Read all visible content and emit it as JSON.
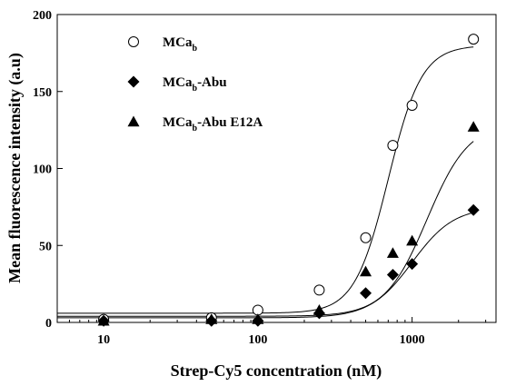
{
  "chart_data": {
    "type": "scatter",
    "xlabel": "Strep-Cy5 concentration (nM)",
    "ylabel": "Mean fluorescence intensity (a.u)",
    "xscale": "log",
    "xlim": [
      5,
      3500
    ],
    "ylim": [
      0,
      200
    ],
    "x_ticks": [
      10,
      100,
      1000
    ],
    "y_ticks": [
      0,
      50,
      100,
      150,
      200
    ],
    "x_tick_labels": [
      "10",
      "100",
      "1000"
    ],
    "y_tick_labels": [
      "0",
      "50",
      "100",
      "150",
      "200"
    ],
    "grid": false,
    "legend_position": "top-left",
    "series": [
      {
        "name": "MCa",
        "name_sub": "b",
        "name_suffix": "",
        "marker": "open-circle",
        "x": [
          10,
          50,
          100,
          250,
          500,
          750,
          1000,
          2500
        ],
        "y": [
          2,
          3,
          8,
          21,
          55,
          115,
          141,
          184
        ],
        "fit": {
          "bottom": 6,
          "top": 180,
          "ec50": 700,
          "hill": 4.0
        }
      },
      {
        "name": "MCa",
        "name_sub": "b",
        "name_suffix": "-Abu",
        "marker": "filled-diamond",
        "x": [
          10,
          50,
          100,
          250,
          500,
          750,
          1000,
          2500
        ],
        "y": [
          1,
          1,
          1,
          6,
          19,
          31,
          38,
          73
        ],
        "fit": {
          "bottom": 3,
          "top": 75,
          "ec50": 1000,
          "hill": 3.2
        }
      },
      {
        "name": "MCa",
        "name_sub": "b",
        "name_suffix": "-Abu E12A",
        "marker": "filled-triangle",
        "x": [
          10,
          50,
          100,
          250,
          500,
          750,
          1000,
          2500
        ],
        "y": [
          1,
          2,
          2,
          8,
          33,
          45,
          53,
          127
        ],
        "fit": {
          "bottom": 4,
          "top": 130,
          "ec50": 1250,
          "hill": 3.2
        }
      }
    ]
  }
}
